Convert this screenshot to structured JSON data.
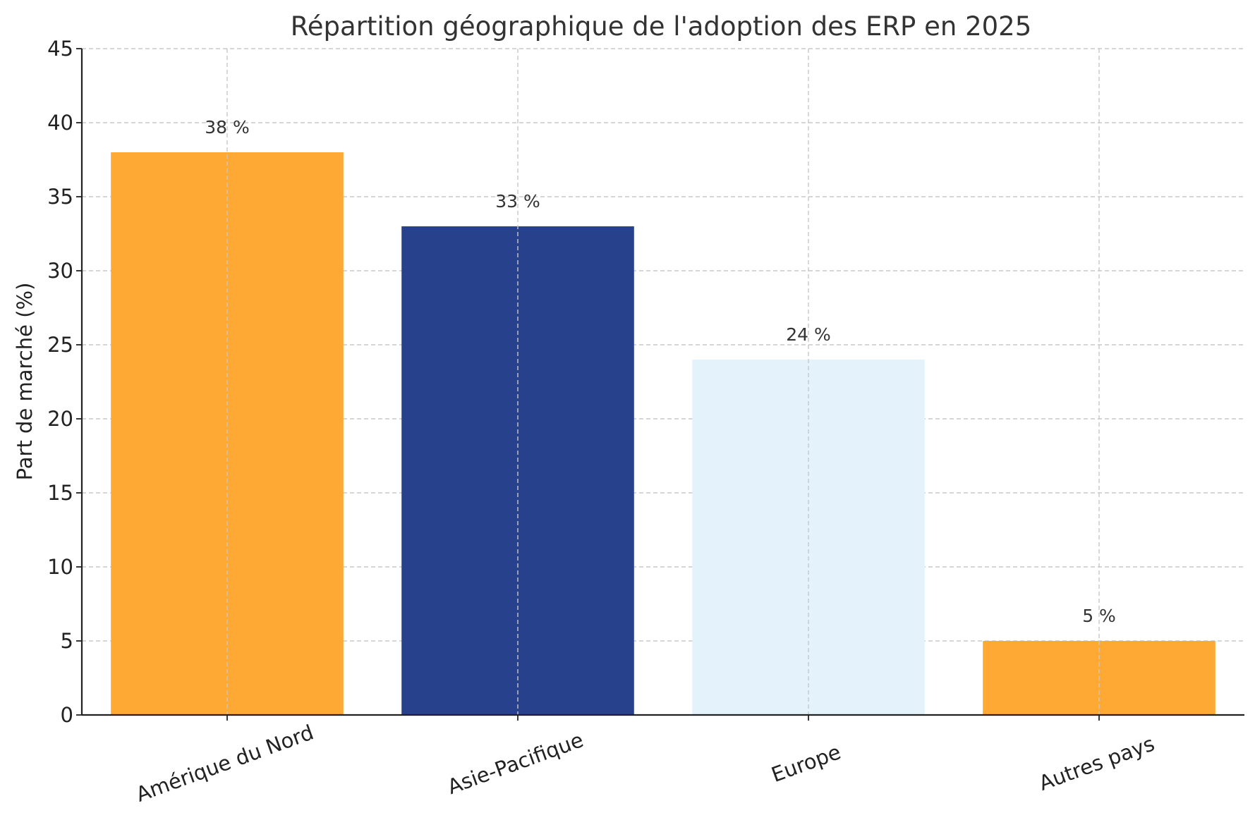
{
  "chart_data": {
    "type": "bar",
    "title": "Répartition géographique de l'adoption des ERP en 2025",
    "xlabel": "",
    "ylabel": "Part de marché (%)",
    "categories": [
      "Amérique du Nord",
      "Asie-Pacifique",
      "Europe",
      "Autres pays"
    ],
    "values": [
      38,
      33,
      24,
      5
    ],
    "data_labels": [
      "38 %",
      "33 %",
      "24 %",
      "5 %"
    ],
    "colors": [
      "#FDA933",
      "#28418C",
      "#E4F3FB",
      "#FDA933"
    ],
    "ylim": [
      0,
      45
    ],
    "yticks": [
      0,
      5,
      10,
      15,
      20,
      25,
      30,
      35,
      40,
      45
    ],
    "grid": true,
    "legend": "none"
  }
}
